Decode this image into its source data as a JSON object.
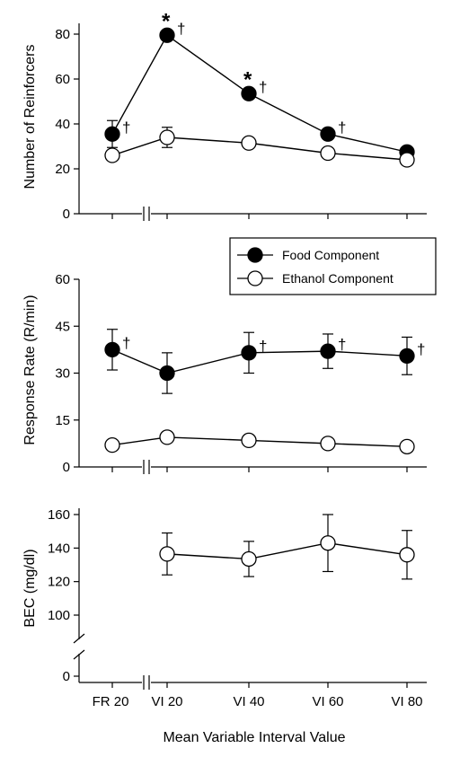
{
  "chart_data": [
    {
      "type": "line",
      "ylabel": "Number of Reinforcers",
      "ylim": [
        0,
        85
      ],
      "yticks": [
        "0",
        "20",
        "40",
        "60",
        "80"
      ],
      "x_categories": [
        "FR 20",
        "VI 20",
        "VI 40",
        "VI 60",
        "VI 80"
      ],
      "series": [
        {
          "name": "Food Component",
          "marker": "filled",
          "values": [
            35.5,
            79.5,
            53.5,
            35.5,
            27.5
          ],
          "err": [
            6,
            0.5,
            0.5,
            0.5,
            0.5
          ],
          "connected": [
            false,
            true,
            true,
            true,
            true
          ],
          "annotations": [
            "†",
            "*†",
            "*†",
            "†",
            ""
          ]
        },
        {
          "name": "Ethanol Component",
          "marker": "open",
          "values": [
            26,
            34,
            31.5,
            27,
            24
          ],
          "err": [
            0.5,
            4.5,
            0.5,
            0.5,
            0.5
          ],
          "connected": [
            false,
            true,
            true,
            true,
            true
          ]
        }
      ]
    },
    {
      "type": "line",
      "ylabel": "Response Rate (R/min)",
      "ylim": [
        0,
        60
      ],
      "yticks": [
        "0",
        "15",
        "30",
        "45",
        "60"
      ],
      "x_categories": [
        "FR 20",
        "VI 20",
        "VI 40",
        "VI 60",
        "VI 80"
      ],
      "legend": {
        "position": "top-right",
        "entries": [
          "Food Component",
          "Ethanol Component"
        ]
      },
      "series": [
        {
          "name": "Food Component",
          "marker": "filled",
          "values": [
            37.5,
            30,
            36.5,
            37,
            35.5
          ],
          "err": [
            6.5,
            6.5,
            6.5,
            5.5,
            6
          ],
          "connected": [
            false,
            true,
            true,
            true,
            true
          ],
          "annotations": [
            "†",
            "",
            "†",
            "†",
            "†"
          ]
        },
        {
          "name": "Ethanol Component",
          "marker": "open",
          "values": [
            7,
            9.5,
            8.5,
            7.5,
            6.5
          ],
          "err": [
            0,
            0,
            0,
            0,
            0
          ],
          "connected": [
            false,
            true,
            true,
            true,
            true
          ]
        }
      ]
    },
    {
      "type": "line",
      "ylabel": "BEC (mg/dl)",
      "yticks": [
        "0",
        "100",
        "120",
        "140",
        "160"
      ],
      "ylim_upper_segment": [
        90,
        162
      ],
      "axis_break": true,
      "x_categories": [
        "FR 20",
        "VI 20",
        "VI 40",
        "VI 60",
        "VI 80"
      ],
      "xlabel": "Mean Variable Interval Value",
      "series": [
        {
          "marker": "open",
          "values": [
            null,
            136.5,
            133.5,
            143,
            136
          ],
          "err": [
            null,
            12.5,
            10.5,
            17,
            14.5
          ]
        }
      ]
    }
  ]
}
